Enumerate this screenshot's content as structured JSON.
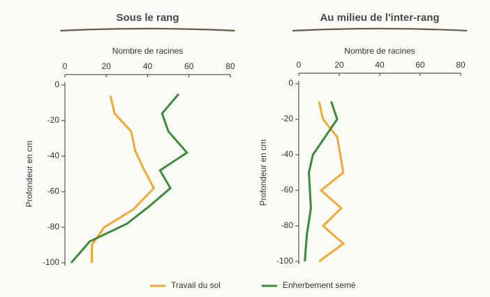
{
  "chart_data": [
    {
      "type": "line",
      "title": "Sous le rang",
      "xlabel": "Nombre de racines",
      "ylabel": "Profondeur en cm",
      "xlim": [
        0,
        80
      ],
      "xticks": [
        0,
        20,
        40,
        60,
        80
      ],
      "ylim": [
        -100,
        0
      ],
      "yticks": [
        0,
        -20,
        -40,
        -60,
        -80,
        -100
      ],
      "series": [
        {
          "color": "#f2a934",
          "x": [
            22,
            24,
            32,
            34,
            38,
            43,
            33,
            19,
            13,
            13
          ],
          "values": [
            -6,
            -16,
            -26,
            -37,
            -47,
            -58,
            -70,
            -80,
            -90,
            -100
          ]
        },
        {
          "color": "#3d8c3a",
          "x": [
            55,
            47,
            50,
            59,
            46,
            51,
            41,
            30,
            12,
            3
          ],
          "values": [
            -5,
            -16,
            -26,
            -38,
            -48,
            -58,
            -68,
            -78,
            -88,
            -100
          ]
        }
      ]
    },
    {
      "type": "line",
      "title": "Au milieu de l'inter-rang",
      "xlabel": "Nombre de racines",
      "ylabel": "Profondeur en cm",
      "xlim": [
        0,
        80
      ],
      "xticks": [
        0,
        20,
        40,
        60,
        80
      ],
      "ylim": [
        -100,
        0
      ],
      "yticks": [
        0,
        -20,
        -40,
        -60,
        -80,
        -100
      ],
      "series": [
        {
          "color": "#f2a934",
          "x": [
            10,
            12,
            19,
            22,
            11,
            21,
            12,
            22,
            10
          ],
          "values": [
            -10,
            -20,
            -30,
            -50,
            -60,
            -70,
            -80,
            -90,
            -100
          ]
        },
        {
          "color": "#3d8c3a",
          "x": [
            16,
            19,
            13,
            7,
            5,
            6,
            4,
            3
          ],
          "values": [
            -10,
            -20,
            -30,
            -40,
            -50,
            -70,
            -85,
            -100
          ]
        }
      ]
    }
  ],
  "legend": [
    {
      "name": "Travail du sol",
      "color": "#f2a934"
    },
    {
      "name": "Enherbement semé",
      "color": "#3d8c3a"
    }
  ]
}
